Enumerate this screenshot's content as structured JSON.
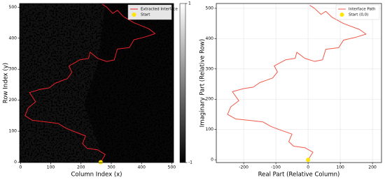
{
  "chart_data": [
    {
      "type": "line",
      "xlabel": "Column Index (x)",
      "ylabel": "Row Index (y)",
      "xlim": [
        -3,
        506
      ],
      "ylim": [
        -1,
        512
      ],
      "xticks": [
        0,
        100,
        200,
        300,
        400,
        500
      ],
      "yticks": [
        0,
        100,
        200,
        300,
        400,
        500
      ],
      "grid": false,
      "legend": "upper right",
      "colorbar": {
        "lim": [
          -1,
          1
        ],
        "ticks": [
          -1,
          1
        ]
      },
      "series": [
        {
          "name": "Extracted Interface",
          "type": "line",
          "color": "#e8202a",
          "x": [
            265,
            280,
            255,
            220,
            205,
            215,
            175,
            150,
            125,
            85,
            40,
            15,
            25,
            50,
            30,
            65,
            95,
            115,
            155,
            170,
            160,
            195,
            225,
            230,
            255,
            285,
            310,
            320,
            360,
            375,
            415,
            445,
            425,
            375,
            340,
            320,
            305,
            285,
            270
          ],
          "values": [
            0,
            25,
            40,
            45,
            60,
            85,
            100,
            110,
            125,
            130,
            135,
            150,
            175,
            195,
            225,
            235,
            240,
            255,
            270,
            290,
            310,
            330,
            335,
            355,
            335,
            325,
            330,
            365,
            370,
            395,
            405,
            415,
            430,
            450,
            470,
            490,
            480,
            500,
            510
          ]
        },
        {
          "name": "Start",
          "type": "scatter",
          "color": "#ffe600",
          "x": [
            265
          ],
          "values": [
            0
          ]
        }
      ]
    },
    {
      "type": "line",
      "xlabel": "Real Part (Relative Column)",
      "ylabel": "Imaginary Part (Relative Row)",
      "xlim": [
        -285,
        228
      ],
      "ylim": [
        -9,
        516
      ],
      "xticks": [
        -200,
        -100,
        0,
        100,
        200
      ],
      "yticks": [
        0,
        100,
        200,
        300,
        400,
        500
      ],
      "grid": true,
      "legend": "upper right",
      "series": [
        {
          "name": "Interface Path",
          "type": "line",
          "color": "#f05a4a",
          "x": [
            0,
            15,
            -10,
            -45,
            -60,
            -50,
            -90,
            -115,
            -140,
            -180,
            -225,
            -250,
            -240,
            -215,
            -235,
            -200,
            -170,
            -150,
            -110,
            -95,
            -105,
            -70,
            -40,
            -35,
            -10,
            20,
            45,
            55,
            95,
            110,
            150,
            180,
            160,
            110,
            75,
            55,
            40,
            20,
            5
          ],
          "values": [
            0,
            25,
            40,
            45,
            60,
            85,
            100,
            110,
            125,
            130,
            135,
            150,
            175,
            195,
            225,
            235,
            240,
            255,
            270,
            290,
            310,
            330,
            335,
            355,
            335,
            325,
            330,
            365,
            370,
            395,
            405,
            415,
            430,
            450,
            470,
            490,
            480,
            500,
            510
          ]
        },
        {
          "name": "Start (0,0)",
          "type": "scatter",
          "color": "#ffe600",
          "x": [
            0
          ],
          "values": [
            0
          ]
        }
      ]
    }
  ]
}
